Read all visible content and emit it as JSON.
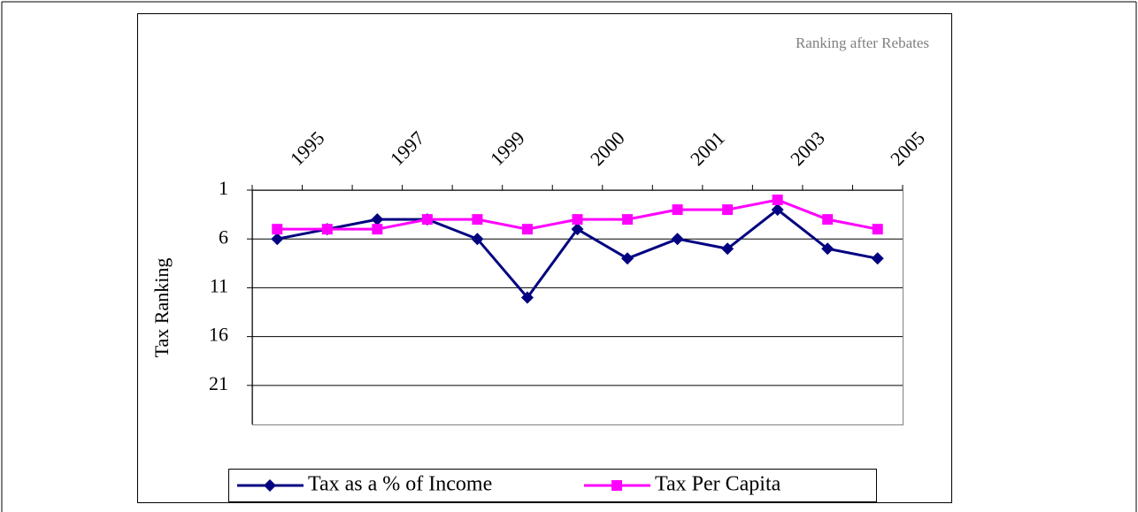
{
  "chart_data": {
    "type": "line",
    "y_label": "Tax Ranking",
    "annotation": "Ranking after Rebates",
    "categories": [
      "1995",
      null,
      "1997",
      null,
      "1999",
      null,
      "2000",
      null,
      "2001",
      null,
      "2003",
      null,
      "2005"
    ],
    "series": [
      {
        "name": "Tax as a % of Income",
        "color": "#000080",
        "marker": "diamond",
        "values": [
          6,
          5,
          4,
          4,
          6,
          12,
          5,
          8,
          6,
          7,
          3,
          7,
          8
        ]
      },
      {
        "name": "Tax Per Capita",
        "color": "#ff00ff",
        "marker": "square",
        "values": [
          5,
          5,
          5,
          4,
          4,
          5,
          4,
          4,
          3,
          3,
          2,
          4,
          5
        ]
      }
    ],
    "ylim": [
      1,
      25
    ],
    "yticks": [
      1,
      6,
      11,
      16,
      21
    ],
    "y_reversed": true,
    "grid": true
  }
}
